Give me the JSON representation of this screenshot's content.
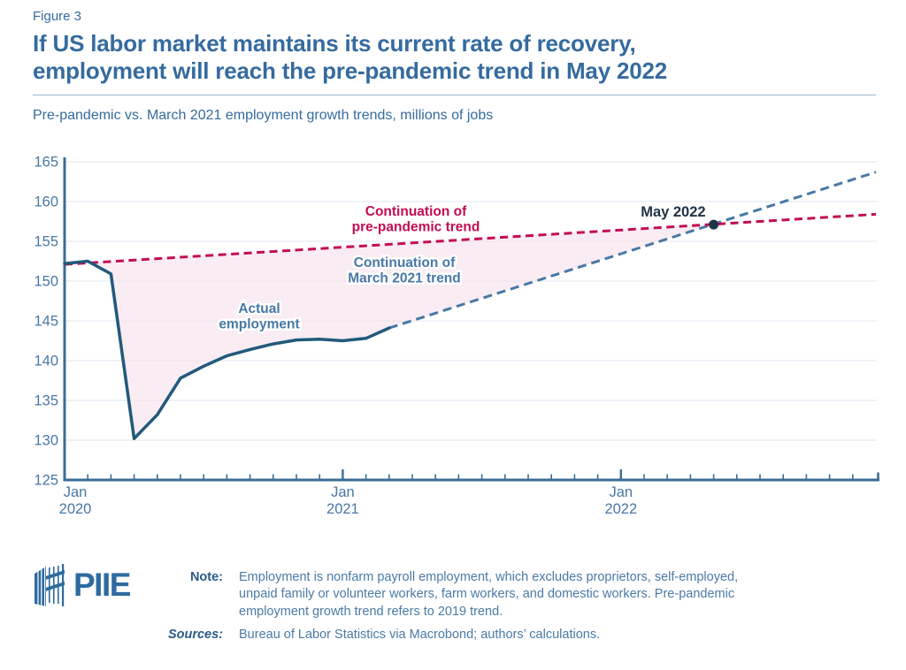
{
  "header": {
    "figure_label": "Figure 3",
    "title_lines": [
      "If US labor market maintains its current rate of recovery,",
      "employment will reach the pre-pandemic trend in May 2022"
    ],
    "subtitle": "Pre-pandemic vs. March 2021 employment growth trends, millions of jobs"
  },
  "chart_data": {
    "type": "line",
    "unit": "millions of jobs",
    "ylim": [
      125,
      165
    ],
    "ytick_step": 5,
    "x_start": "2020-01",
    "x_end": "2022-12",
    "grid": true,
    "xticks": [
      {
        "month": "2020-01",
        "label_lines": [
          "Jan",
          "2020"
        ]
      },
      {
        "month": "2021-01",
        "label_lines": [
          "Jan",
          "2021"
        ]
      },
      {
        "month": "2022-01",
        "label_lines": [
          "Jan",
          "2022"
        ]
      }
    ],
    "series": [
      {
        "id": "actual",
        "name": "Actual employment",
        "style": "solid",
        "start_month": "2020-01",
        "values": [
          152.2,
          152.5,
          150.9,
          130.2,
          133.2,
          137.8,
          139.3,
          140.6,
          141.4,
          142.1,
          142.6,
          142.7,
          142.5,
          142.8,
          144.1
        ]
      },
      {
        "id": "pre_pandemic_trend",
        "name": "Continuation of pre-pandemic trend",
        "style": "dashed",
        "points": [
          {
            "month": "2020-01",
            "value": 152.1
          },
          {
            "month": "2022-12",
            "value": 158.4
          }
        ]
      },
      {
        "id": "march_2021_trend",
        "name": "Continuation of March 2021 trend",
        "style": "dashed",
        "points": [
          {
            "month": "2021-03",
            "value": 144.1
          },
          {
            "month": "2022-12",
            "value": 163.7
          }
        ]
      }
    ],
    "marker": {
      "month": "2022-05",
      "value": 157.1,
      "label": "May 2022"
    },
    "annotations": [
      {
        "id": "pre_pandemic_label",
        "lines": [
          "Continuation of",
          "pre-pandemic trend"
        ]
      },
      {
        "id": "march_2021_label",
        "lines": [
          "Continuation of",
          "March 2021 trend"
        ]
      },
      {
        "id": "actual_label",
        "lines": [
          "Actual",
          "employment"
        ]
      }
    ],
    "shaded_region": {
      "between": [
        "pre_pandemic_trend",
        "actual + march_2021_trend"
      ],
      "from": "2020-01",
      "to": "2022-05"
    }
  },
  "footer": {
    "logo_text": "PIIE",
    "note_label": "Note:",
    "note_lines": [
      "Employment is nonfarm payroll employment, which excludes proprietors, self-employed,",
      "unpaid family or volunteer workers, farm workers, and domestic workers. Pre-pandemic",
      "employment growth trend refers to 2019 trend."
    ],
    "sources_label": "Sources:",
    "sources_text": "Bureau of Labor Statistics via Macrobond; authors’ calculations."
  },
  "colors": {
    "brand_blue": "#356b9f",
    "steel_blue": "#4878a5",
    "dark_line": "#21597b",
    "crimson": "#c20d53",
    "pink_fill": "#f7e5ed",
    "dot_navy": "#203448",
    "grid": "#dfe6ef",
    "axis": "#3a6d94",
    "logo_blue": "#2e6ba0"
  }
}
